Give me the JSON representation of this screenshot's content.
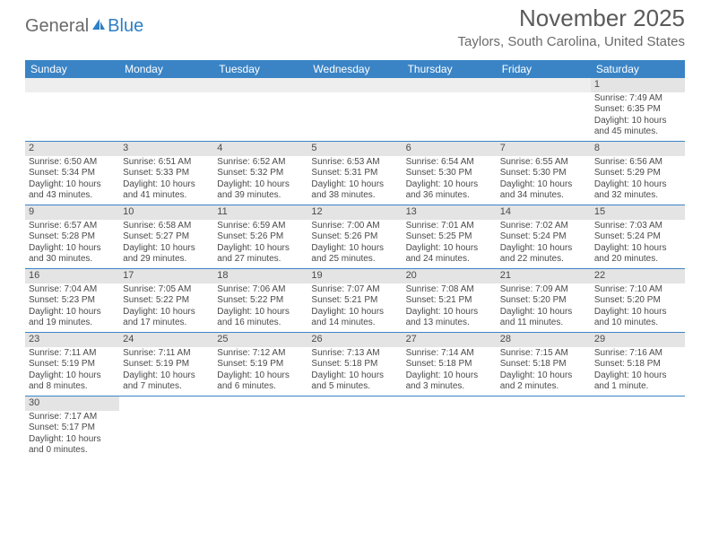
{
  "brand": {
    "general": "General",
    "blue": "Blue"
  },
  "title": {
    "month": "November 2025",
    "location": "Taylors, South Carolina, United States"
  },
  "colors": {
    "header_bg": "#3a84c6",
    "header_text": "#ffffff",
    "band_bg": "#e4e4e4",
    "row_border": "#3a84c6",
    "text": "#4a4a4a",
    "logo_gray": "#6a6a6a",
    "logo_blue": "#2d7fc6"
  },
  "daysOfWeek": [
    "Sunday",
    "Monday",
    "Tuesday",
    "Wednesday",
    "Thursday",
    "Friday",
    "Saturday"
  ],
  "weeks": [
    [
      null,
      null,
      null,
      null,
      null,
      null,
      {
        "n": "1",
        "sr": "7:49 AM",
        "ss": "6:35 PM",
        "dl": "10 hours and 45 minutes."
      }
    ],
    [
      {
        "n": "2",
        "sr": "6:50 AM",
        "ss": "5:34 PM",
        "dl": "10 hours and 43 minutes."
      },
      {
        "n": "3",
        "sr": "6:51 AM",
        "ss": "5:33 PM",
        "dl": "10 hours and 41 minutes."
      },
      {
        "n": "4",
        "sr": "6:52 AM",
        "ss": "5:32 PM",
        "dl": "10 hours and 39 minutes."
      },
      {
        "n": "5",
        "sr": "6:53 AM",
        "ss": "5:31 PM",
        "dl": "10 hours and 38 minutes."
      },
      {
        "n": "6",
        "sr": "6:54 AM",
        "ss": "5:30 PM",
        "dl": "10 hours and 36 minutes."
      },
      {
        "n": "7",
        "sr": "6:55 AM",
        "ss": "5:30 PM",
        "dl": "10 hours and 34 minutes."
      },
      {
        "n": "8",
        "sr": "6:56 AM",
        "ss": "5:29 PM",
        "dl": "10 hours and 32 minutes."
      }
    ],
    [
      {
        "n": "9",
        "sr": "6:57 AM",
        "ss": "5:28 PM",
        "dl": "10 hours and 30 minutes."
      },
      {
        "n": "10",
        "sr": "6:58 AM",
        "ss": "5:27 PM",
        "dl": "10 hours and 29 minutes."
      },
      {
        "n": "11",
        "sr": "6:59 AM",
        "ss": "5:26 PM",
        "dl": "10 hours and 27 minutes."
      },
      {
        "n": "12",
        "sr": "7:00 AM",
        "ss": "5:26 PM",
        "dl": "10 hours and 25 minutes."
      },
      {
        "n": "13",
        "sr": "7:01 AM",
        "ss": "5:25 PM",
        "dl": "10 hours and 24 minutes."
      },
      {
        "n": "14",
        "sr": "7:02 AM",
        "ss": "5:24 PM",
        "dl": "10 hours and 22 minutes."
      },
      {
        "n": "15",
        "sr": "7:03 AM",
        "ss": "5:24 PM",
        "dl": "10 hours and 20 minutes."
      }
    ],
    [
      {
        "n": "16",
        "sr": "7:04 AM",
        "ss": "5:23 PM",
        "dl": "10 hours and 19 minutes."
      },
      {
        "n": "17",
        "sr": "7:05 AM",
        "ss": "5:22 PM",
        "dl": "10 hours and 17 minutes."
      },
      {
        "n": "18",
        "sr": "7:06 AM",
        "ss": "5:22 PM",
        "dl": "10 hours and 16 minutes."
      },
      {
        "n": "19",
        "sr": "7:07 AM",
        "ss": "5:21 PM",
        "dl": "10 hours and 14 minutes."
      },
      {
        "n": "20",
        "sr": "7:08 AM",
        "ss": "5:21 PM",
        "dl": "10 hours and 13 minutes."
      },
      {
        "n": "21",
        "sr": "7:09 AM",
        "ss": "5:20 PM",
        "dl": "10 hours and 11 minutes."
      },
      {
        "n": "22",
        "sr": "7:10 AM",
        "ss": "5:20 PM",
        "dl": "10 hours and 10 minutes."
      }
    ],
    [
      {
        "n": "23",
        "sr": "7:11 AM",
        "ss": "5:19 PM",
        "dl": "10 hours and 8 minutes."
      },
      {
        "n": "24",
        "sr": "7:11 AM",
        "ss": "5:19 PM",
        "dl": "10 hours and 7 minutes."
      },
      {
        "n": "25",
        "sr": "7:12 AM",
        "ss": "5:19 PM",
        "dl": "10 hours and 6 minutes."
      },
      {
        "n": "26",
        "sr": "7:13 AM",
        "ss": "5:18 PM",
        "dl": "10 hours and 5 minutes."
      },
      {
        "n": "27",
        "sr": "7:14 AM",
        "ss": "5:18 PM",
        "dl": "10 hours and 3 minutes."
      },
      {
        "n": "28",
        "sr": "7:15 AM",
        "ss": "5:18 PM",
        "dl": "10 hours and 2 minutes."
      },
      {
        "n": "29",
        "sr": "7:16 AM",
        "ss": "5:18 PM",
        "dl": "10 hours and 1 minute."
      }
    ],
    [
      {
        "n": "30",
        "sr": "7:17 AM",
        "ss": "5:17 PM",
        "dl": "10 hours and 0 minutes."
      },
      null,
      null,
      null,
      null,
      null,
      null
    ]
  ],
  "labels": {
    "sunrise": "Sunrise: ",
    "sunset": "Sunset: ",
    "daylight": "Daylight: "
  }
}
